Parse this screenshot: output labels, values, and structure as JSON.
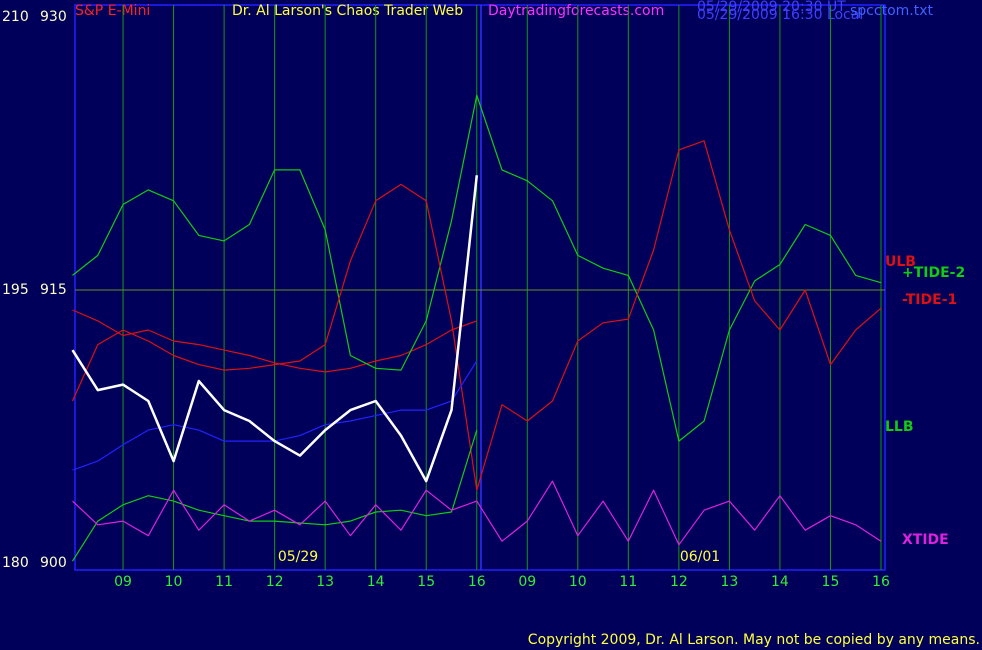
{
  "chart_data": {
    "type": "line",
    "title": "Dr. Al Larson's Chaos Trader Web",
    "instrument": "S&P E-Mini",
    "site": "Daytradingforecasts.com",
    "timestamps": [
      "05/29/2009 20:30 UT",
      "05/29/2009 16:30 Local"
    ],
    "file": "spcctom.txt",
    "copyright": "Copyright 2009, Dr. Al Larson. May not be copied by any means.",
    "date_labels": [
      "05/29",
      "06/01"
    ],
    "categories": [
      null,
      null,
      "09",
      null,
      "10",
      null,
      "11",
      null,
      "12",
      null,
      "13",
      null,
      "14",
      null,
      "15",
      null,
      "16",
      null,
      "09",
      null,
      "10",
      null,
      "11",
      null,
      "12",
      null,
      "13",
      null,
      "14",
      null,
      "15",
      null,
      "16"
    ],
    "ylim": [
      900,
      930
    ],
    "yticks": [
      900,
      915,
      930
    ],
    "y2lim": [
      180,
      210
    ],
    "y2ticks": [
      180,
      195,
      210
    ],
    "hgrid": true,
    "vgrid": true,
    "series": [
      {
        "name": "ULB",
        "color": "#dd1111",
        "values": [
          913.9,
          913.3,
          912.5,
          912.8,
          912.2,
          912.0,
          911.7,
          911.4,
          911.0,
          910.7,
          910.5,
          910.7,
          911.1,
          911.4,
          912.0,
          912.8,
          913.3,
          null,
          null,
          null,
          null,
          null,
          null,
          null,
          null,
          null,
          null,
          null,
          null,
          null,
          null,
          null,
          null
        ]
      },
      {
        "name": "+TIDE-2",
        "color": "#11cc11",
        "values": [
          915.8,
          916.9,
          919.7,
          920.5,
          919.9,
          918.0,
          917.7,
          918.6,
          921.6,
          921.6,
          918.3,
          911.4,
          910.7,
          910.6,
          913.3,
          918.8,
          925.7,
          921.6,
          921.0,
          919.9,
          916.9,
          916.2,
          915.8,
          912.8,
          906.7,
          907.8,
          912.8,
          915.5,
          916.4,
          918.6,
          918.0,
          915.8,
          915.4
        ]
      },
      {
        "name": "-TIDE-1",
        "color": "#dd1111",
        "values": [
          908.9,
          912.0,
          912.8,
          912.2,
          911.4,
          910.9,
          910.6,
          910.7,
          910.9,
          911.1,
          912.0,
          916.6,
          919.9,
          920.8,
          919.9,
          913.3,
          904.0,
          908.7,
          907.8,
          908.9,
          912.2,
          913.2,
          913.4,
          917.2,
          922.7,
          923.2,
          918.3,
          914.4,
          912.8,
          915.0,
          910.9,
          912.8,
          914.0
        ]
      },
      {
        "name": "LLB",
        "color": "#11cc11",
        "values": [
          900.1,
          902.3,
          903.2,
          903.7,
          903.4,
          902.9,
          902.6,
          902.3,
          902.3,
          902.2,
          902.1,
          902.3,
          902.8,
          902.9,
          902.6,
          902.8,
          907.3,
          null,
          null,
          null,
          null,
          null,
          null,
          null,
          null,
          null,
          null,
          null,
          null,
          null,
          null,
          null,
          null
        ]
      },
      {
        "name": "XTIDE",
        "color": "#dd22dd",
        "values": [
          903.4,
          902.1,
          902.3,
          901.5,
          904.0,
          901.8,
          903.2,
          902.3,
          902.9,
          902.1,
          903.4,
          901.5,
          903.2,
          901.8,
          904.0,
          902.9,
          903.4,
          901.2,
          902.3,
          904.5,
          901.5,
          903.4,
          901.2,
          904.0,
          901.0,
          902.9,
          903.4,
          901.8,
          903.7,
          901.8,
          902.6,
          902.1,
          901.2
        ]
      },
      {
        "color": "#2222ff",
        "values": [
          905.1,
          905.6,
          906.5,
          907.3,
          907.6,
          907.3,
          906.7,
          906.7,
          906.7,
          907.0,
          907.6,
          907.8,
          908.1,
          908.4,
          908.4,
          908.9,
          911.1,
          null,
          null,
          null,
          null,
          null,
          null,
          null,
          null,
          null,
          null,
          null,
          null,
          null,
          null,
          null,
          null
        ]
      },
      {
        "color": "#ffffff",
        "values": [
          911.7,
          909.5,
          909.8,
          908.9,
          905.6,
          910.0,
          908.4,
          907.8,
          906.7,
          905.9,
          907.3,
          908.4,
          908.9,
          907.0,
          904.5,
          908.4,
          921.3,
          null,
          null,
          null,
          null,
          null,
          null,
          null,
          null,
          null,
          null,
          null,
          null,
          null,
          null,
          null,
          null
        ]
      }
    ]
  }
}
